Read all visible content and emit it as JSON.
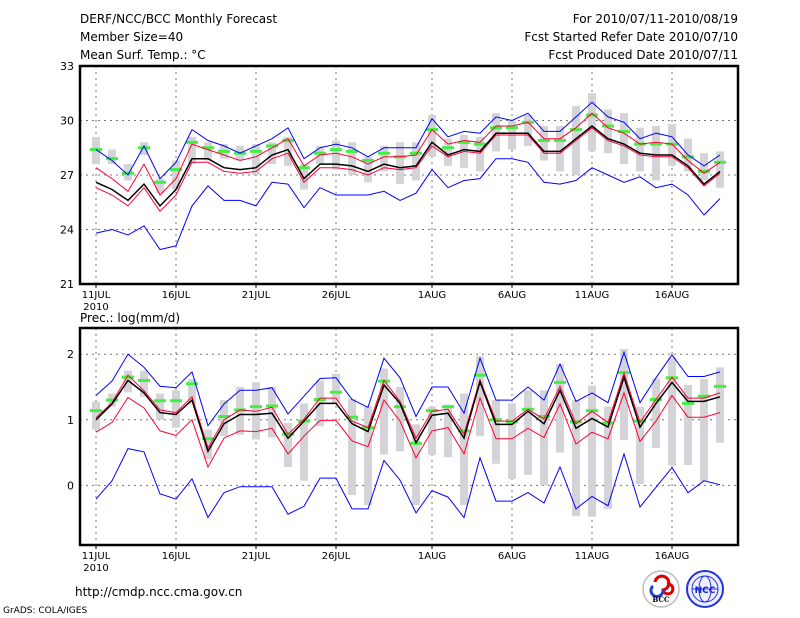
{
  "header": {
    "title": "DERF/NCC/BCC Monthly Forecast",
    "member_size": "Member Size=40",
    "variable": "Mean Surf. Temp.: °C",
    "period": "For 2010/07/11-2010/08/19",
    "started": "Fcst Started Refer Date 2010/07/10",
    "produced": "Fcst Produced Date 2010/07/11"
  },
  "footer": {
    "url": "http://cmdp.ncc.cma.gov.cn",
    "grads": "GrADS: COLA/IGES",
    "logo_bcc": "BCC",
    "logo_ncc": "NCC"
  },
  "colors": {
    "blue": "#0000ff",
    "red": "#ff0033",
    "black": "#000000",
    "green": "#44ee44",
    "gray": "#d3d3d8"
  },
  "chart_data": [
    {
      "type": "line",
      "title": "Mean Surf. Temp.: °C",
      "ylim": [
        21,
        33
      ],
      "yticks": [
        "21",
        "24",
        "27",
        "30",
        "33"
      ],
      "ytick_values": [
        21,
        24,
        27,
        30,
        33
      ],
      "xticks": [
        {
          "day": 0,
          "label": "11JUL",
          "sub": "2010"
        },
        {
          "day": 5,
          "label": "16JUL"
        },
        {
          "day": 10,
          "label": "21JUL"
        },
        {
          "day": 15,
          "label": "26JUL"
        },
        {
          "day": 21,
          "label": "1AUG"
        },
        {
          "day": 26,
          "label": "6AUG"
        },
        {
          "day": 31,
          "label": "11AUG"
        },
        {
          "day": 36,
          "label": "16AUG"
        }
      ],
      "grid": true,
      "upper_blue": [
        28.4,
        27.8,
        27.0,
        28.6,
        26.8,
        27.7,
        29.5,
        28.9,
        28.6,
        28.2,
        28.6,
        29.0,
        29.6,
        27.9,
        28.5,
        28.7,
        28.5,
        28.0,
        28.5,
        28.5,
        28.5,
        30.1,
        29.1,
        29.4,
        29.3,
        30.2,
        30.0,
        30.4,
        29.4,
        29.4,
        30.2,
        31.0,
        30.2,
        29.9,
        29.0,
        29.3,
        29.1,
        28.1,
        27.5,
        28.1
      ],
      "lower_blue": [
        23.8,
        24.0,
        23.7,
        24.2,
        22.9,
        23.1,
        25.3,
        26.4,
        25.6,
        25.6,
        25.3,
        26.6,
        26.5,
        25.2,
        26.3,
        25.9,
        25.9,
        25.9,
        26.1,
        25.6,
        26.0,
        27.3,
        26.3,
        26.7,
        26.8,
        27.9,
        27.9,
        27.7,
        26.6,
        26.5,
        26.7,
        27.4,
        27.0,
        26.6,
        26.9,
        26.3,
        26.5,
        25.9,
        24.8,
        25.7
      ],
      "upper_red": [
        27.4,
        26.8,
        26.1,
        27.6,
        25.9,
        26.8,
        28.7,
        28.4,
        28.1,
        27.8,
        28.0,
        28.5,
        29.0,
        27.5,
        28.1,
        28.2,
        28.0,
        27.6,
        28.0,
        28.0,
        28.1,
        29.5,
        28.7,
        28.9,
        28.8,
        29.7,
        29.7,
        29.9,
        29.0,
        29.0,
        29.6,
        30.4,
        29.6,
        29.3,
        28.7,
        28.8,
        28.7,
        27.8,
        27.1,
        27.7
      ],
      "mean": [
        26.6,
        26.2,
        25.6,
        26.5,
        25.3,
        26.2,
        27.9,
        27.9,
        27.4,
        27.3,
        27.4,
        28.1,
        28.4,
        26.8,
        27.6,
        27.6,
        27.5,
        27.2,
        27.6,
        27.4,
        27.5,
        28.8,
        28.1,
        28.4,
        28.3,
        29.3,
        29.3,
        29.3,
        28.3,
        28.3,
        29.0,
        29.7,
        29.0,
        28.7,
        28.2,
        28.1,
        28.1,
        27.5,
        26.5,
        27.2
      ],
      "lower_red": [
        26.3,
        25.9,
        25.3,
        26.3,
        25.0,
        25.9,
        27.7,
        27.7,
        27.2,
        27.1,
        27.2,
        27.9,
        28.2,
        26.6,
        27.4,
        27.4,
        27.3,
        27.0,
        27.4,
        27.3,
        27.4,
        28.6,
        28.0,
        28.3,
        28.2,
        29.2,
        29.2,
        29.2,
        28.2,
        28.2,
        28.9,
        29.6,
        28.9,
        28.6,
        28.1,
        28.0,
        28.0,
        27.4,
        26.4,
        27.1
      ],
      "green": [
        28.4,
        27.9,
        27.1,
        28.5,
        26.6,
        27.3,
        28.8,
        28.5,
        28.3,
        28.2,
        28.3,
        28.6,
        28.9,
        27.4,
        28.2,
        28.4,
        28.3,
        27.8,
        28.2,
        28.0,
        28.2,
        29.5,
        28.5,
        28.8,
        28.7,
        29.6,
        29.6,
        29.9,
        28.9,
        28.9,
        29.5,
        30.3,
        29.7,
        29.4,
        28.7,
        28.7,
        28.7,
        28.0,
        27.2,
        27.7
      ],
      "gray_range": [
        [
          27.6,
          29.1
        ],
        [
          27.6,
          28.4
        ],
        [
          26.7,
          27.6
        ],
        [
          28.1,
          28.8
        ],
        [
          26.0,
          26.8
        ],
        [
          26.2,
          27.8
        ],
        [
          27.6,
          29.1
        ],
        [
          27.8,
          28.8
        ],
        [
          27.9,
          28.7
        ],
        [
          27.8,
          28.6
        ],
        [
          27.0,
          28.7
        ],
        [
          27.6,
          28.8
        ],
        [
          27.5,
          29.1
        ],
        [
          26.2,
          27.6
        ],
        [
          27.6,
          28.6
        ],
        [
          27.3,
          28.9
        ],
        [
          27.0,
          28.8
        ],
        [
          26.6,
          28.0
        ],
        [
          27.2,
          28.6
        ],
        [
          26.5,
          28.8
        ],
        [
          26.7,
          28.8
        ],
        [
          28.0,
          30.3
        ],
        [
          27.5,
          29.0
        ],
        [
          27.4,
          29.2
        ],
        [
          27.2,
          29.1
        ],
        [
          28.3,
          30.4
        ],
        [
          28.4,
          30.0
        ],
        [
          28.6,
          30.3
        ],
        [
          27.8,
          29.7
        ],
        [
          27.2,
          29.7
        ],
        [
          27.0,
          30.8
        ],
        [
          28.3,
          31.5
        ],
        [
          28.2,
          30.6
        ],
        [
          27.6,
          30.4
        ],
        [
          27.2,
          29.6
        ],
        [
          26.7,
          29.7
        ],
        [
          27.5,
          29.8
        ],
        [
          27.2,
          29.0
        ],
        [
          26.7,
          28.2
        ],
        [
          26.3,
          28.3
        ]
      ]
    },
    {
      "type": "line",
      "title": "Prec.: log(mm/d)",
      "ylim": [
        -0.91,
        2.4
      ],
      "yticks": [
        "0",
        "1",
        "2"
      ],
      "ytick_values": [
        0,
        1,
        2
      ],
      "xticks": [
        {
          "day": 0,
          "label": "11JUL",
          "sub": "2010"
        },
        {
          "day": 5,
          "label": "16JUL"
        },
        {
          "day": 10,
          "label": "21JUL"
        },
        {
          "day": 15,
          "label": "26JUL"
        },
        {
          "day": 21,
          "label": "1AUG"
        },
        {
          "day": 26,
          "label": "6AUG"
        },
        {
          "day": 31,
          "label": "11AUG"
        },
        {
          "day": 36,
          "label": "16AUG"
        }
      ],
      "grid": true,
      "upper_blue": [
        1.37,
        1.59,
        2.0,
        1.8,
        1.51,
        1.49,
        1.73,
        0.91,
        1.24,
        1.45,
        1.45,
        1.49,
        1.09,
        1.36,
        1.63,
        1.64,
        1.31,
        1.19,
        1.94,
        1.64,
        1.05,
        1.5,
        1.5,
        1.1,
        1.94,
        1.3,
        1.3,
        1.5,
        1.3,
        1.85,
        1.28,
        1.41,
        1.26,
        2.03,
        1.26,
        1.64,
        1.99,
        1.66,
        1.66,
        1.73
      ],
      "lower_blue": [
        -0.21,
        0.07,
        0.56,
        0.51,
        -0.13,
        -0.21,
        0.1,
        -0.49,
        -0.11,
        -0.02,
        -0.02,
        -0.02,
        -0.44,
        -0.32,
        0.11,
        0.11,
        -0.36,
        -0.36,
        0.38,
        0.08,
        -0.42,
        -0.08,
        -0.18,
        -0.49,
        0.42,
        -0.24,
        -0.24,
        -0.11,
        -0.27,
        0.28,
        -0.36,
        -0.17,
        -0.31,
        0.48,
        -0.33,
        -0.03,
        0.27,
        -0.11,
        0.07,
        0.01
      ],
      "upper_red": [
        1.03,
        1.26,
        1.68,
        1.44,
        1.15,
        1.11,
        1.35,
        0.57,
        1.0,
        1.15,
        1.13,
        1.19,
        0.78,
        1.01,
        1.33,
        1.33,
        0.98,
        0.88,
        1.6,
        1.28,
        0.72,
        1.13,
        1.16,
        0.78,
        1.61,
        0.98,
        0.98,
        1.16,
        1.01,
        1.51,
        0.94,
        1.13,
        0.96,
        1.71,
        0.96,
        1.31,
        1.65,
        1.33,
        1.33,
        1.41
      ],
      "mean": [
        1.0,
        1.24,
        1.6,
        1.41,
        1.11,
        1.08,
        1.3,
        0.52,
        0.94,
        1.08,
        1.08,
        1.1,
        0.72,
        0.98,
        1.25,
        1.25,
        0.94,
        0.82,
        1.53,
        1.25,
        0.65,
        1.07,
        1.1,
        0.72,
        1.58,
        0.93,
        0.93,
        1.13,
        0.94,
        1.45,
        0.87,
        1.02,
        0.89,
        1.65,
        0.89,
        1.25,
        1.57,
        1.28,
        1.28,
        1.35
      ],
      "lower_red": [
        0.81,
        0.96,
        1.34,
        1.18,
        0.83,
        0.76,
        1.0,
        0.28,
        0.72,
        0.83,
        0.82,
        0.87,
        0.48,
        0.75,
        0.99,
        0.99,
        0.68,
        0.59,
        1.3,
        0.98,
        0.42,
        0.83,
        0.88,
        0.48,
        1.33,
        0.71,
        0.71,
        0.87,
        0.73,
        1.24,
        0.63,
        0.81,
        0.71,
        1.41,
        0.67,
        0.98,
        1.37,
        1.04,
        1.04,
        1.11
      ],
      "green": [
        1.14,
        1.3,
        1.65,
        1.6,
        1.29,
        1.29,
        1.55,
        0.71,
        1.05,
        1.15,
        1.2,
        1.21,
        0.78,
        0.98,
        1.31,
        1.42,
        1.04,
        0.88,
        1.59,
        1.2,
        0.64,
        1.14,
        1.2,
        0.83,
        1.68,
        1.0,
        0.97,
        1.16,
        1.05,
        1.57,
        0.97,
        1.14,
        0.95,
        1.72,
        0.98,
        1.31,
        1.64,
        1.25,
        1.36,
        1.51
      ],
      "gray_range": [
        [
          0.85,
          1.28
        ],
        [
          1.2,
          1.4
        ],
        [
          1.42,
          1.75
        ],
        [
          1.35,
          1.75
        ],
        [
          1.0,
          1.4
        ],
        [
          0.88,
          1.45
        ],
        [
          1.25,
          1.62
        ],
        [
          0.4,
          0.85
        ],
        [
          0.75,
          1.3
        ],
        [
          0.77,
          1.5
        ],
        [
          0.7,
          1.57
        ],
        [
          0.73,
          1.5
        ],
        [
          0.28,
          0.95
        ],
        [
          0.07,
          1.25
        ],
        [
          0.9,
          1.6
        ],
        [
          1.25,
          1.7
        ],
        [
          -0.15,
          1.32
        ],
        [
          -0.3,
          1.2
        ],
        [
          0.47,
          1.78
        ],
        [
          0.52,
          1.5
        ],
        [
          -0.3,
          0.93
        ],
        [
          0.46,
          1.2
        ],
        [
          0.43,
          1.23
        ],
        [
          -0.3,
          1.4
        ],
        [
          0.75,
          1.97
        ],
        [
          0.33,
          1.3
        ],
        [
          0.1,
          1.25
        ],
        [
          0.16,
          1.45
        ],
        [
          0.0,
          1.45
        ],
        [
          0.5,
          1.85
        ],
        [
          -0.47,
          1.3
        ],
        [
          -0.48,
          1.52
        ],
        [
          -0.36,
          1.2
        ],
        [
          0.69,
          2.08
        ],
        [
          0.02,
          1.2
        ],
        [
          0.57,
          1.63
        ],
        [
          0.3,
          1.95
        ],
        [
          0.31,
          1.53
        ],
        [
          0.06,
          1.62
        ],
        [
          0.65,
          1.8
        ]
      ]
    }
  ]
}
